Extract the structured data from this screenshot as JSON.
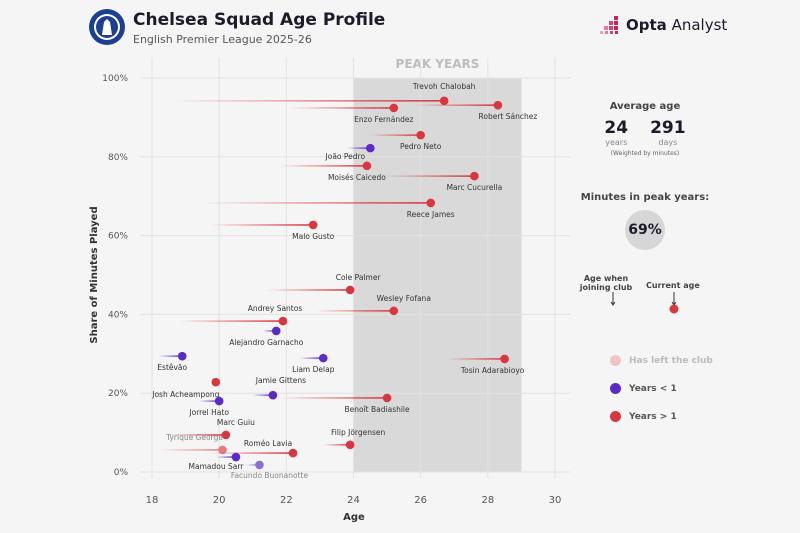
{
  "header": {
    "title": "Chelsea Squad Age Profile",
    "subtitle": "English Premier League 2025-26",
    "brand_bold": "Opta",
    "brand_light": "Analyst"
  },
  "panel": {
    "avg_title": "Average age",
    "avg_years": "24",
    "avg_years_label": "years",
    "avg_days": "291",
    "avg_days_label": "days",
    "weighted_note": "(Weighted by minutes)",
    "peak_title": "Minutes in peak years:",
    "peak_value": "69%",
    "key_join": "Age when joining club",
    "key_current": "Current age"
  },
  "legend": [
    {
      "label": "Has left the club",
      "color": "#efc4c6"
    },
    {
      "label": "Years < 1",
      "color": "#5a2bc9"
    },
    {
      "label": "Years > 1",
      "color": "#d9373f"
    }
  ],
  "colors": {
    "years_gt_1": "#d9373f",
    "years_lt_1": "#5a2bc9",
    "left_red": "#e27c80",
    "left_purple": "#8b6fd6",
    "peak_band": "#d9d9d9"
  },
  "chart_data": {
    "type": "scatter",
    "xlabel": "Age",
    "ylabel": "Share of Minutes Played",
    "xlim": [
      18,
      30
    ],
    "ylim": [
      0,
      100
    ],
    "xticks": [
      "18",
      "20",
      "22",
      "24",
      "26",
      "28",
      "30"
    ],
    "yticks": [
      "0%",
      "20%",
      "40%",
      "60%",
      "80%",
      "100%"
    ],
    "grid": true,
    "peak_band": {
      "label": "PEAK YEARS",
      "from": 24,
      "to": 29
    },
    "players": [
      {
        "name": "Trevoh Chalobah",
        "age": 26.7,
        "share": 94.2,
        "join_age": 18.6,
        "group": "years_gt_1"
      },
      {
        "name": "Robert Sánchez",
        "age": 28.3,
        "share": 93.1,
        "join_age": 25.8,
        "group": "years_gt_1"
      },
      {
        "name": "Enzo Fernández",
        "age": 25.2,
        "share": 92.4,
        "join_age": 22.1,
        "group": "years_gt_1"
      },
      {
        "name": "Pedro Neto",
        "age": 26.0,
        "share": 85.5,
        "join_age": 24.5,
        "group": "years_gt_1"
      },
      {
        "name": "João Pedro",
        "age": 24.5,
        "share": 82.2,
        "join_age": 23.8,
        "group": "years_lt_1"
      },
      {
        "name": "Moisés Caicedo",
        "age": 24.4,
        "share": 77.7,
        "join_age": 21.8,
        "group": "years_gt_1"
      },
      {
        "name": "Marc Cucurella",
        "age": 27.6,
        "share": 75.1,
        "join_age": 24.9,
        "group": "years_gt_1"
      },
      {
        "name": "Reece James",
        "age": 26.3,
        "share": 68.3,
        "join_age": 19.5,
        "group": "years_gt_1"
      },
      {
        "name": "Malo Gusto",
        "age": 22.8,
        "share": 62.7,
        "join_age": 19.7,
        "group": "years_gt_1"
      },
      {
        "name": "Cole Palmer",
        "age": 23.9,
        "share": 46.2,
        "join_age": 21.4,
        "group": "years_gt_1"
      },
      {
        "name": "Wesley Fofana",
        "age": 25.2,
        "share": 40.9,
        "join_age": 22.9,
        "group": "years_gt_1"
      },
      {
        "name": "Andrey Santos",
        "age": 21.9,
        "share": 38.3,
        "join_age": 18.8,
        "group": "years_gt_1"
      },
      {
        "name": "Alejandro Garnacho",
        "age": 21.7,
        "share": 35.8,
        "join_age": 21.3,
        "group": "years_lt_1"
      },
      {
        "name": "Estêvão",
        "age": 18.9,
        "share": 29.4,
        "join_age": 18.2,
        "group": "years_lt_1"
      },
      {
        "name": "Liam Delap",
        "age": 23.1,
        "share": 28.9,
        "join_age": 22.4,
        "group": "years_lt_1"
      },
      {
        "name": "Tosin Adarabioyo",
        "age": 28.5,
        "share": 28.7,
        "join_age": 26.8,
        "group": "years_gt_1"
      },
      {
        "name": "Josh Acheampong",
        "age": 19.9,
        "share": 22.8,
        "join_age": 19.9,
        "group": "years_gt_1"
      },
      {
        "name": "Jamie Gittens",
        "age": 21.6,
        "share": 19.5,
        "join_age": 21.0,
        "group": "years_lt_1"
      },
      {
        "name": "Benoît Badiashile",
        "age": 25.0,
        "share": 18.8,
        "join_age": 21.8,
        "group": "years_gt_1"
      },
      {
        "name": "Jorrel Hato",
        "age": 20.0,
        "share": 18.0,
        "join_age": 19.4,
        "group": "years_lt_1"
      },
      {
        "name": "Marc Guiu",
        "age": 20.2,
        "share": 9.4,
        "join_age": 18.4,
        "group": "years_gt_1"
      },
      {
        "name": "Tyrique George",
        "age": 20.1,
        "share": 5.6,
        "join_age": 18.2,
        "group": "left_red"
      },
      {
        "name": "Filip Jörgensen",
        "age": 23.9,
        "share": 6.9,
        "join_age": 23.1,
        "group": "years_gt_1"
      },
      {
        "name": "Roméo Lavia",
        "age": 22.2,
        "share": 4.8,
        "join_age": 19.7,
        "group": "years_gt_1"
      },
      {
        "name": "Mamadou Sarr",
        "age": 20.5,
        "share": 3.8,
        "join_age": 19.9,
        "group": "years_lt_1"
      },
      {
        "name": "Facundo Buonanotte",
        "age": 21.2,
        "share": 1.8,
        "join_age": 20.8,
        "group": "left_purple"
      }
    ]
  }
}
